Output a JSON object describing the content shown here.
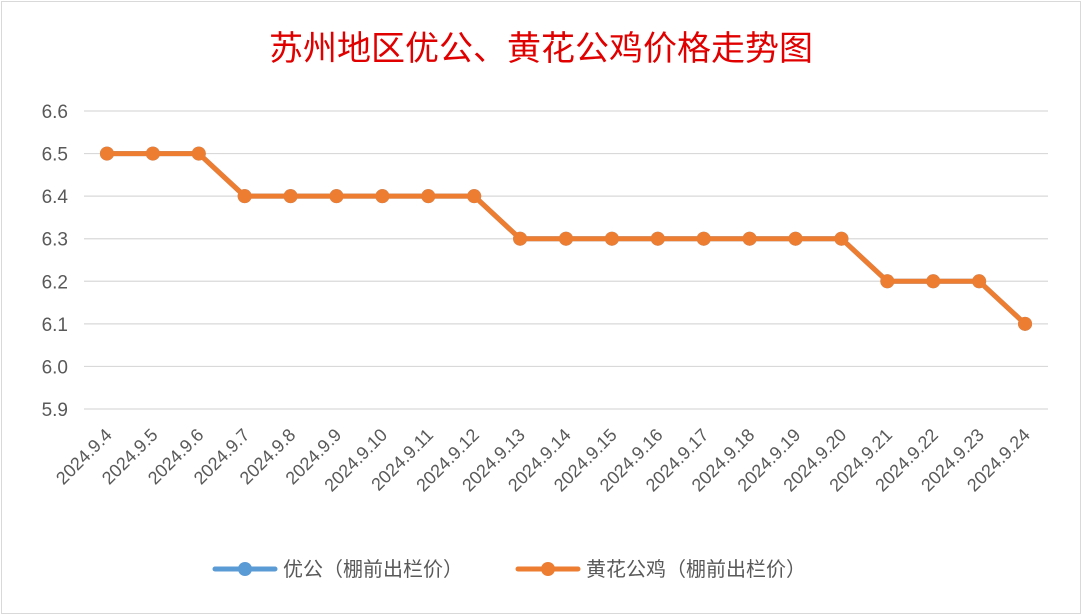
{
  "chart_data": {
    "type": "line",
    "title": "苏州地区优公、黄花公鸡价格走势图",
    "xlabel": "",
    "ylabel": "",
    "ylim": [
      5.9,
      6.6
    ],
    "yticks": [
      "6.6",
      "6.5",
      "6.4",
      "6.3",
      "6.2",
      "6.1",
      "6.0",
      "5.9"
    ],
    "ytick_values": [
      6.6,
      6.5,
      6.4,
      6.3,
      6.2,
      6.1,
      6.0,
      5.9
    ],
    "grid": true,
    "legend_position": "bottom",
    "categories": [
      "2024.9.4",
      "2024.9.5",
      "2024.9.6",
      "2024.9.7",
      "2024.9.8",
      "2024.9.9",
      "2024.9.10",
      "2024.9.11",
      "2024.9.12",
      "2024.9.13",
      "2024.9.14",
      "2024.9.15",
      "2024.9.16",
      "2024.9.17",
      "2024.9.18",
      "2024.9.19",
      "2024.9.20",
      "2024.9.21",
      "2024.9.22",
      "2024.9.23",
      "2024.9.24"
    ],
    "series": [
      {
        "name": "优公（棚前出栏价）",
        "color": "#5b9bd5",
        "values": [
          6.5,
          6.5,
          6.5,
          6.4,
          6.4,
          6.4,
          6.4,
          6.4,
          6.4,
          6.3,
          6.3,
          6.3,
          6.3,
          6.3,
          6.3,
          6.3,
          6.3,
          6.2,
          6.2,
          6.2,
          6.1
        ]
      },
      {
        "name": "黄花公鸡（棚前出栏价）",
        "color": "#ed7d31",
        "values": [
          6.5,
          6.5,
          6.5,
          6.4,
          6.4,
          6.4,
          6.4,
          6.4,
          6.4,
          6.3,
          6.3,
          6.3,
          6.3,
          6.3,
          6.3,
          6.3,
          6.3,
          6.2,
          6.2,
          6.2,
          6.1
        ]
      }
    ]
  }
}
